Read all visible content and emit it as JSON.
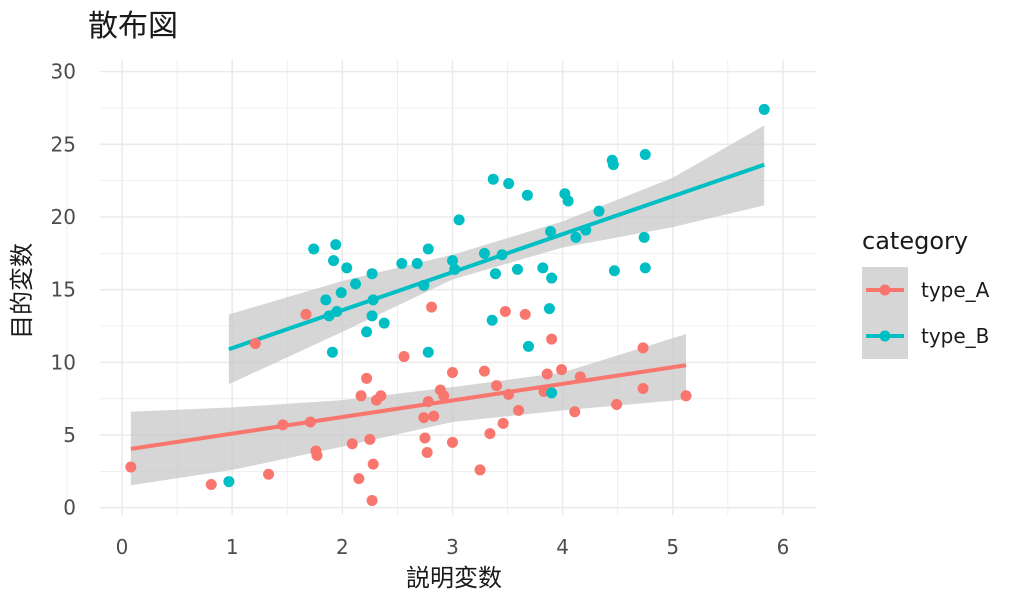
{
  "chart_data": {
    "type": "scatter",
    "title": "散布図",
    "xlabel": "説明変数",
    "ylabel": "目的変数",
    "xlim": [
      -0.2,
      6.3
    ],
    "ylim": [
      -0.5,
      30.8
    ],
    "x_ticks": [
      "0",
      "1",
      "2",
      "3",
      "4",
      "5",
      "6"
    ],
    "y_ticks": [
      "0",
      "5",
      "10",
      "15",
      "20",
      "25",
      "30"
    ],
    "grid": true,
    "legend_title": "category",
    "legend_position": "right",
    "series": [
      {
        "name": "type_A",
        "color": "#F8766D",
        "points": [
          [
            0.08,
            2.8
          ],
          [
            0.81,
            1.6
          ],
          [
            1.21,
            11.3
          ],
          [
            1.33,
            2.3
          ],
          [
            1.46,
            5.7
          ],
          [
            1.67,
            13.3
          ],
          [
            1.71,
            5.9
          ],
          [
            1.76,
            3.9
          ],
          [
            1.77,
            3.6
          ],
          [
            2.09,
            4.4
          ],
          [
            2.15,
            2.0
          ],
          [
            2.17,
            7.7
          ],
          [
            2.22,
            8.9
          ],
          [
            2.25,
            4.7
          ],
          [
            2.27,
            0.5
          ],
          [
            2.28,
            3.0
          ],
          [
            2.31,
            7.4
          ],
          [
            2.35,
            7.7
          ],
          [
            2.56,
            10.4
          ],
          [
            2.74,
            6.2
          ],
          [
            2.75,
            4.8
          ],
          [
            2.77,
            3.8
          ],
          [
            2.78,
            7.3
          ],
          [
            2.81,
            13.8
          ],
          [
            2.83,
            6.3
          ],
          [
            2.89,
            8.1
          ],
          [
            2.92,
            7.7
          ],
          [
            3.0,
            9.3
          ],
          [
            3.0,
            4.5
          ],
          [
            3.25,
            2.6
          ],
          [
            3.29,
            9.4
          ],
          [
            3.34,
            5.1
          ],
          [
            3.4,
            8.4
          ],
          [
            3.46,
            5.8
          ],
          [
            3.48,
            13.5
          ],
          [
            3.51,
            7.8
          ],
          [
            3.6,
            6.7
          ],
          [
            3.66,
            13.3
          ],
          [
            3.83,
            8.0
          ],
          [
            3.86,
            9.2
          ],
          [
            3.9,
            11.6
          ],
          [
            3.99,
            9.5
          ],
          [
            4.11,
            6.6
          ],
          [
            4.16,
            9.0
          ],
          [
            4.49,
            7.1
          ],
          [
            4.73,
            11.0
          ],
          [
            4.73,
            8.2
          ],
          [
            5.12,
            7.7
          ]
        ],
        "trend": {
          "x0": 0.08,
          "y0": 4.05,
          "x1": 5.12,
          "y1": 9.8
        }
      },
      {
        "name": "type_B",
        "color": "#00BFC4",
        "points": [
          [
            0.97,
            1.8
          ],
          [
            1.74,
            17.8
          ],
          [
            1.85,
            14.3
          ],
          [
            1.88,
            13.2
          ],
          [
            1.91,
            10.7
          ],
          [
            1.92,
            17.0
          ],
          [
            1.94,
            18.1
          ],
          [
            1.95,
            13.5
          ],
          [
            1.99,
            14.8
          ],
          [
            2.04,
            16.5
          ],
          [
            2.12,
            15.4
          ],
          [
            2.22,
            12.1
          ],
          [
            2.27,
            16.1
          ],
          [
            2.27,
            13.2
          ],
          [
            2.28,
            14.3
          ],
          [
            2.38,
            12.7
          ],
          [
            2.54,
            16.8
          ],
          [
            2.68,
            16.8
          ],
          [
            2.74,
            15.3
          ],
          [
            2.78,
            17.8
          ],
          [
            2.78,
            10.7
          ],
          [
            3.0,
            17.0
          ],
          [
            3.02,
            16.4
          ],
          [
            3.06,
            19.8
          ],
          [
            3.29,
            17.5
          ],
          [
            3.36,
            12.9
          ],
          [
            3.37,
            22.6
          ],
          [
            3.39,
            16.1
          ],
          [
            3.45,
            17.4
          ],
          [
            3.51,
            22.3
          ],
          [
            3.59,
            16.4
          ],
          [
            3.68,
            21.5
          ],
          [
            3.69,
            11.1
          ],
          [
            3.82,
            16.5
          ],
          [
            3.88,
            13.7
          ],
          [
            3.89,
            19.0
          ],
          [
            3.9,
            15.8
          ],
          [
            3.9,
            7.9
          ],
          [
            4.02,
            21.6
          ],
          [
            4.05,
            21.1
          ],
          [
            4.12,
            18.6
          ],
          [
            4.21,
            19.1
          ],
          [
            4.33,
            20.4
          ],
          [
            4.45,
            23.9
          ],
          [
            4.46,
            23.6
          ],
          [
            4.47,
            16.3
          ],
          [
            4.74,
            18.6
          ],
          [
            4.75,
            24.3
          ],
          [
            4.75,
            16.5
          ],
          [
            5.83,
            27.4
          ]
        ],
        "trend": {
          "x0": 0.97,
          "y0": 10.9,
          "x1": 5.83,
          "y1": 23.6
        }
      }
    ],
    "confidence_band": {
      "type_A": [
        [
          0.08,
          6.6,
          1.55
        ],
        [
          1.0,
          6.9,
          2.6
        ],
        [
          2.0,
          7.4,
          4.2
        ],
        [
          3.0,
          8.3,
          5.9
        ],
        [
          4.0,
          9.3,
          6.7
        ],
        [
          5.12,
          11.95,
          7.45
        ]
      ],
      "type_B": [
        [
          0.97,
          13.3,
          8.5
        ],
        [
          2.0,
          15.6,
          12.1
        ],
        [
          3.0,
          17.4,
          15.7
        ],
        [
          4.0,
          19.7,
          17.9
        ],
        [
          5.0,
          22.7,
          19.3
        ],
        [
          5.83,
          26.3,
          20.8
        ]
      ]
    },
    "band_color": "#C8C8C8"
  }
}
